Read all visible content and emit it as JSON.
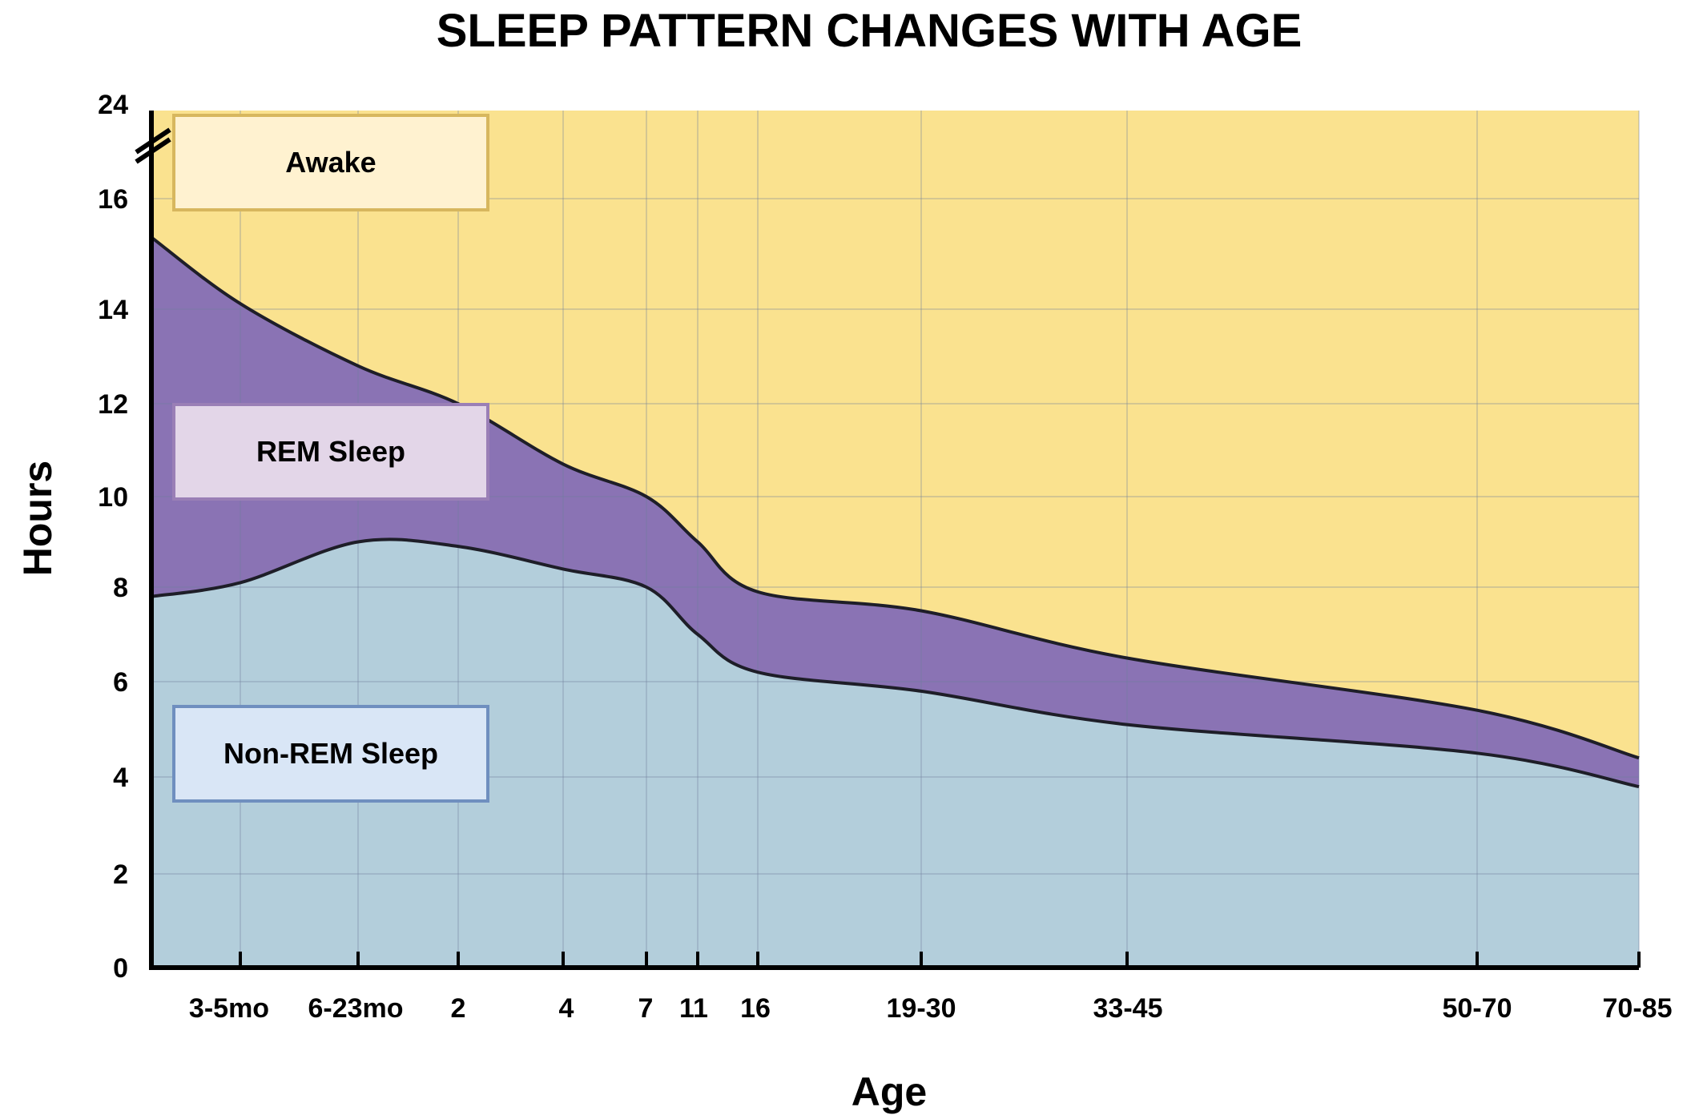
{
  "chart_data": {
    "type": "area",
    "title": "SLEEP PATTERN CHANGES WITH AGE",
    "xlabel": "Age",
    "ylabel": "Hours",
    "ylim": [
      0,
      24
    ],
    "y_axis_break": "between 16 and 24",
    "y_ticks": [
      "0",
      "2",
      "4",
      "6",
      "8",
      "10",
      "12",
      "14",
      "16",
      "24"
    ],
    "categories": [
      "3-5mo",
      "6-23mo",
      "2",
      "4",
      "7",
      "11",
      "16",
      "19-30",
      "33-45",
      "50-70",
      "70-85"
    ],
    "series": [
      {
        "name": "Non-REM Sleep",
        "color": "#b3cedb",
        "x": [
          "0",
          "3-5mo",
          "6-23mo",
          "2",
          "4",
          "7",
          "11",
          "16",
          "19-30",
          "33-45",
          "50-70",
          "70-85"
        ],
        "values": [
          7.8,
          8.1,
          9.0,
          8.9,
          8.4,
          8.0,
          7.0,
          6.2,
          5.8,
          5.1,
          4.5,
          3.8
        ]
      },
      {
        "name": "REM Sleep",
        "color": "#8a73b4",
        "x": [
          "0",
          "3-5mo",
          "6-23mo",
          "2",
          "4",
          "7",
          "11",
          "16",
          "19-30",
          "33-45",
          "50-70",
          "70-85"
        ],
        "values": [
          7.5,
          6.0,
          3.8,
          3.1,
          2.3,
          2.0,
          2.0,
          1.7,
          1.7,
          1.4,
          0.9,
          0.6
        ]
      },
      {
        "name": "Awake",
        "color": "#fae28f",
        "x": [
          "0",
          "3-5mo",
          "6-23mo",
          "2",
          "4",
          "7",
          "11",
          "16",
          "19-30",
          "33-45",
          "50-70",
          "70-85"
        ],
        "values": [
          8.7,
          9.9,
          11.2,
          12.0,
          13.3,
          14.0,
          15.0,
          16.1,
          16.5,
          17.5,
          18.6,
          19.6
        ]
      }
    ],
    "legend": [
      {
        "label": "Awake",
        "fill": "#fff2d0",
        "border": "#d7b75e"
      },
      {
        "label": "REM Sleep",
        "fill": "#e3d6e8",
        "border": "#9a7fb6"
      },
      {
        "label": "Non-REM Sleep",
        "fill": "#d9e6f6",
        "border": "#6f8fbf"
      }
    ],
    "legend_position": "left",
    "grid": true,
    "colors": {
      "awake": "#fae28f",
      "rem": "#8a73b4",
      "nonrem": "#b3cedb",
      "boundary": "#1e1e28",
      "axis": "#000000"
    }
  }
}
